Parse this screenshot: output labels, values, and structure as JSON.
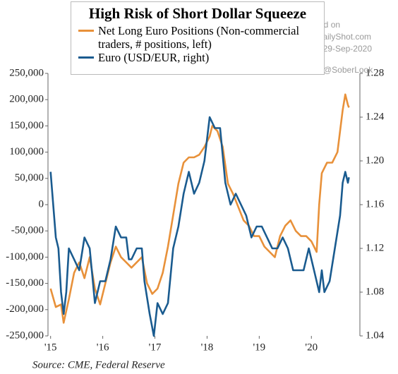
{
  "chart_data": {
    "type": "line",
    "title": "High Risk of Short Dollar Squeeze",
    "source": "Source: CME, Federal Reserve",
    "watermarks": [
      "Posted on",
      "TheDailyShot.com",
      "29-Sep-2020",
      "@SoberLook"
    ],
    "xlim": [
      2014.95,
      2020.93
    ],
    "xticks": [
      {
        "value": 2015,
        "label": "'15"
      },
      {
        "value": 2016,
        "label": "'16"
      },
      {
        "value": 2017,
        "label": "'17"
      },
      {
        "value": 2018,
        "label": "'18"
      },
      {
        "value": 2019,
        "label": "'19"
      },
      {
        "value": 2020,
        "label": "'20"
      }
    ],
    "ylim": [
      -250000,
      250000
    ],
    "yticks": [
      {
        "value": -250000,
        "label": "-250,000"
      },
      {
        "value": -200000,
        "label": "-200,000"
      },
      {
        "value": -150000,
        "label": "-150,000"
      },
      {
        "value": -100000,
        "label": "-100,000"
      },
      {
        "value": -50000,
        "label": "-50,000"
      },
      0,
      {
        "value": 50000,
        "label": "50,000"
      },
      {
        "value": 100000,
        "label": "100,000"
      },
      {
        "value": 150000,
        "label": "150,000"
      },
      {
        "value": 200000,
        "label": "200,000"
      },
      {
        "value": 250000,
        "label": "250,000"
      }
    ],
    "y2lim": [
      1.04,
      1.28
    ],
    "y2ticks": [
      1.04,
      1.08,
      1.12,
      1.16,
      {
        "value": 1.2,
        "label": "1.20"
      },
      1.24,
      1.28
    ],
    "series": [
      {
        "name": "Net Long Euro Positions (Non-commercial traders, # positions, left)",
        "color": "#e8913a",
        "axis": "y",
        "x": [
          2015.0,
          2015.1,
          2015.2,
          2015.25,
          2015.35,
          2015.45,
          2015.55,
          2015.65,
          2015.75,
          2015.85,
          2015.95,
          2016.05,
          2016.15,
          2016.25,
          2016.35,
          2016.45,
          2016.55,
          2016.65,
          2016.75,
          2016.85,
          2016.95,
          2017.05,
          2017.15,
          2017.25,
          2017.35,
          2017.45,
          2017.55,
          2017.65,
          2017.75,
          2017.85,
          2017.95,
          2018.05,
          2018.1,
          2018.2,
          2018.3,
          2018.4,
          2018.5,
          2018.6,
          2018.7,
          2018.8,
          2018.9,
          2019.0,
          2019.1,
          2019.2,
          2019.3,
          2019.4,
          2019.5,
          2019.6,
          2019.7,
          2019.8,
          2019.9,
          2020.0,
          2020.1,
          2020.15,
          2020.2,
          2020.3,
          2020.4,
          2020.5,
          2020.55,
          2020.6,
          2020.65,
          2020.7,
          2020.72
        ],
        "values": [
          -160000,
          -195000,
          -190000,
          -225000,
          -180000,
          -130000,
          -110000,
          -140000,
          -100000,
          -160000,
          -190000,
          -150000,
          -110000,
          -80000,
          -100000,
          -110000,
          -120000,
          -110000,
          -100000,
          -150000,
          -170000,
          -160000,
          -130000,
          -80000,
          -20000,
          40000,
          80000,
          90000,
          90000,
          95000,
          110000,
          130000,
          150000,
          140000,
          110000,
          40000,
          20000,
          -5000,
          -30000,
          -40000,
          -60000,
          -60000,
          -80000,
          -90000,
          -100000,
          -60000,
          -40000,
          -30000,
          -50000,
          -60000,
          -60000,
          -70000,
          -90000,
          0,
          60000,
          80000,
          80000,
          100000,
          140000,
          180000,
          210000,
          190000,
          185000
        ]
      },
      {
        "name": "Euro (USD/EUR, right)",
        "color": "#1a5b8f",
        "axis": "y2",
        "x": [
          2015.0,
          2015.1,
          2015.15,
          2015.2,
          2015.25,
          2015.3,
          2015.35,
          2015.45,
          2015.55,
          2015.65,
          2015.75,
          2015.85,
          2015.95,
          2016.05,
          2016.15,
          2016.25,
          2016.35,
          2016.45,
          2016.5,
          2016.55,
          2016.65,
          2016.75,
          2016.8,
          2016.9,
          2016.98,
          2017.05,
          2017.15,
          2017.25,
          2017.35,
          2017.45,
          2017.55,
          2017.65,
          2017.75,
          2017.85,
          2017.95,
          2018.05,
          2018.15,
          2018.25,
          2018.35,
          2018.45,
          2018.55,
          2018.65,
          2018.75,
          2018.85,
          2018.95,
          2019.05,
          2019.15,
          2019.25,
          2019.35,
          2019.45,
          2019.55,
          2019.65,
          2019.75,
          2019.85,
          2019.95,
          2020.05,
          2020.15,
          2020.2,
          2020.25,
          2020.35,
          2020.45,
          2020.55,
          2020.6,
          2020.65,
          2020.7,
          2020.72
        ],
        "values": [
          1.19,
          1.13,
          1.12,
          1.08,
          1.06,
          1.08,
          1.12,
          1.11,
          1.1,
          1.13,
          1.12,
          1.07,
          1.09,
          1.09,
          1.11,
          1.14,
          1.13,
          1.13,
          1.11,
          1.11,
          1.12,
          1.12,
          1.09,
          1.06,
          1.04,
          1.07,
          1.06,
          1.07,
          1.12,
          1.14,
          1.17,
          1.19,
          1.17,
          1.18,
          1.2,
          1.24,
          1.23,
          1.23,
          1.18,
          1.16,
          1.17,
          1.16,
          1.15,
          1.13,
          1.14,
          1.14,
          1.13,
          1.12,
          1.12,
          1.13,
          1.12,
          1.1,
          1.1,
          1.1,
          1.12,
          1.1,
          1.08,
          1.1,
          1.08,
          1.09,
          1.12,
          1.15,
          1.18,
          1.19,
          1.18,
          1.185
        ]
      }
    ]
  }
}
